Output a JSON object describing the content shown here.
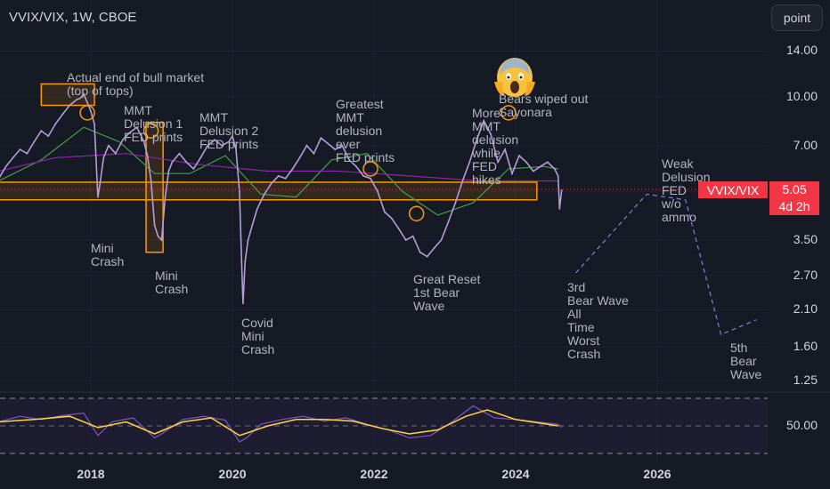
{
  "header": {
    "title": "VVIX/VIX, 1W, CBOE",
    "point_button": "point"
  },
  "price_tag": {
    "symbol": "VVIX/VIX",
    "value": "5.05",
    "countdown": "4d 2h"
  },
  "colors": {
    "background": "#161a25",
    "price_line": "#b39ddb",
    "ma_green": "#43a047",
    "ma_purple": "#8e24aa",
    "annotation_orange": "#ff9800",
    "down_red": "#f23645",
    "rsi_line": "#7e57c2",
    "rsi_ma": "#fdd835",
    "projection": "#7e74d4"
  },
  "annotations": [
    {
      "id": "actual-end",
      "text": "Actual end of bull market\n(top of tops)"
    },
    {
      "id": "mmt-delusion-1",
      "text": "MMT\nDelusion 1\nFED prints"
    },
    {
      "id": "mmt-delusion-2",
      "text": "MMT\nDelusion 2\nFED prints"
    },
    {
      "id": "greatest-mmt",
      "text": "Greatest\nMMT\ndelusion\never\nFED prints"
    },
    {
      "id": "more-mmt",
      "text": "More\nMMT\ndelusion\nwhile\nFED\nhikes"
    },
    {
      "id": "bears-wiped",
      "text": "Bears wiped out\nSayonara"
    },
    {
      "id": "mini-crash-1",
      "text": "Mini\nCrash"
    },
    {
      "id": "mini-crash-2",
      "text": "Mini\nCrash"
    },
    {
      "id": "covid",
      "text": "Covid\nMini\nCrash"
    },
    {
      "id": "great-reset",
      "text": "Great Reset\n1st Bear\nWave"
    },
    {
      "id": "third-bear",
      "text": "3rd\nBear Wave\nAll\nTime\nWorst\nCrash"
    },
    {
      "id": "weak-delusion",
      "text": "Weak\nDelusion\nFED\nw/o\nammo"
    },
    {
      "id": "fifth-bear",
      "text": "5th\nBear\nWave"
    }
  ],
  "chart_data": [
    {
      "type": "line",
      "title": "VVIX/VIX, 1W, CBOE",
      "y_scale": "log",
      "ylim": [
        1.15,
        16.0
      ],
      "y_ticks": [
        "14.00",
        "10.00",
        "7.00",
        "5.00",
        "3.50",
        "2.70",
        "2.10",
        "1.60",
        "1.25"
      ],
      "x_ticks": [
        "2018",
        "2020",
        "2022",
        "2024",
        "2026"
      ],
      "xlim": [
        2016.7,
        2027.4
      ],
      "last_value": 5.05,
      "series": [
        {
          "x": [
            2016.7,
            2016.8,
            2016.9,
            2017.0,
            2017.1,
            2017.2,
            2017.3,
            2017.4,
            2017.5,
            2017.6,
            2017.7,
            2017.8,
            2017.85,
            2017.9,
            2017.95,
            2018.0,
            2018.05,
            2018.1,
            2018.13,
            2018.18,
            2018.25,
            2018.35,
            2018.45,
            2018.55,
            2018.65,
            2018.75,
            2018.8,
            2018.85,
            2018.9,
            2018.95,
            2019.0,
            2019.05,
            2019.1,
            2019.15,
            2019.25,
            2019.35,
            2019.45,
            2019.55,
            2019.65,
            2019.75,
            2019.85,
            2019.95,
            2020.0,
            2020.05,
            2020.1,
            2020.13,
            2020.15,
            2020.18,
            2020.22,
            2020.28,
            2020.35,
            2020.45,
            2020.55,
            2020.65,
            2020.75,
            2020.85,
            2020.95,
            2021.05,
            2021.15,
            2021.25,
            2021.35,
            2021.45,
            2021.55,
            2021.65,
            2021.75,
            2021.85,
            2021.95,
            2022.05,
            2022.15,
            2022.25,
            2022.35,
            2022.45,
            2022.55,
            2022.65,
            2022.75,
            2022.85,
            2022.95,
            2023.05,
            2023.15,
            2023.25,
            2023.35,
            2023.45,
            2023.55,
            2023.65,
            2023.75,
            2023.85,
            2023.95,
            2024.05,
            2024.15,
            2024.25,
            2024.35,
            2024.45,
            2024.55,
            2024.6,
            2024.62,
            2024.65
          ],
          "values": [
            5.5,
            6.0,
            6.4,
            6.8,
            6.6,
            7.2,
            7.8,
            7.5,
            8.2,
            8.8,
            9.4,
            9.8,
            9.9,
            10.2,
            9.6,
            9.0,
            8.2,
            4.8,
            5.3,
            6.4,
            7.0,
            6.6,
            7.3,
            7.7,
            8.0,
            7.2,
            6.5,
            5.4,
            3.9,
            3.6,
            3.5,
            4.8,
            5.8,
            6.2,
            6.6,
            6.2,
            5.9,
            6.4,
            7.0,
            7.3,
            7.0,
            7.2,
            7.5,
            6.8,
            5.0,
            3.0,
            2.2,
            3.0,
            3.5,
            3.9,
            4.4,
            4.9,
            5.3,
            5.6,
            5.5,
            5.9,
            6.4,
            7.0,
            6.6,
            7.4,
            7.1,
            6.8,
            7.0,
            6.3,
            6.0,
            5.6,
            5.5,
            5.0,
            4.3,
            4.1,
            3.8,
            3.5,
            3.6,
            3.2,
            3.1,
            3.3,
            3.5,
            4.0,
            4.6,
            5.4,
            6.2,
            7.3,
            8.4,
            7.6,
            6.2,
            6.8,
            5.7,
            6.5,
            6.2,
            5.8,
            6.0,
            6.2,
            5.9,
            5.6,
            4.4,
            5.05
          ],
          "name": ""
        },
        {
          "x": [
            2016.7,
            2017.3,
            2017.9,
            2018.4,
            2018.9,
            2019.4,
            2019.9,
            2020.4,
            2020.9,
            2021.4,
            2021.9,
            2022.4,
            2022.9,
            2023.4,
            2023.9,
            2024.4,
            2024.6
          ],
          "values": [
            5.4,
            6.3,
            8.0,
            7.2,
            5.7,
            5.7,
            6.5,
            4.9,
            4.8,
            6.3,
            6.6,
            5.0,
            4.2,
            4.6,
            5.9,
            6.0,
            5.9
          ],
          "name": ""
        },
        {
          "x": [
            2016.7,
            2017.5,
            2018.5,
            2019.5,
            2020.5,
            2021.5,
            2022.5,
            2023.5,
            2024.6
          ],
          "values": [
            5.8,
            6.4,
            6.6,
            6.1,
            5.8,
            5.8,
            5.6,
            5.4,
            5.4
          ],
          "name": ""
        }
      ],
      "projection": {
        "x": [
          2024.85,
          2025.85,
          2026.4,
          2026.9,
          2027.4
        ],
        "values": [
          2.75,
          4.9,
          4.7,
          1.75,
          1.95
        ]
      },
      "zones": [
        {
          "x": [
            2017.3,
            2018.05
          ],
          "y": [
            9.4,
            11.0
          ]
        },
        {
          "x": [
            2018.78,
            2019.02
          ],
          "y": [
            3.2,
            8.3
          ]
        },
        {
          "x": [
            2016.7,
            2024.3
          ],
          "y": [
            4.7,
            5.35
          ]
        }
      ],
      "circles": [
        {
          "x": 2017.95,
          "y": 8.9
        },
        {
          "x": 2018.85,
          "y": 7.8
        },
        {
          "x": 2021.95,
          "y": 5.9
        },
        {
          "x": 2022.6,
          "y": 4.25
        },
        {
          "x": 2023.9,
          "y": 8.9
        }
      ]
    },
    {
      "type": "line",
      "ylabel": "",
      "y_ticks": [
        "50.00"
      ],
      "ylim": [
        20,
        85
      ],
      "series": [
        {
          "x": [
            2016.7,
            2017.0,
            2017.3,
            2017.6,
            2017.9,
            2018.1,
            2018.3,
            2018.6,
            2018.9,
            2019.0,
            2019.3,
            2019.6,
            2019.9,
            2020.1,
            2020.2,
            2020.4,
            2020.7,
            2021.0,
            2021.3,
            2021.6,
            2021.9,
            2022.2,
            2022.5,
            2022.8,
            2023.1,
            2023.4,
            2023.7,
            2024.0,
            2024.3,
            2024.6,
            2024.65
          ],
          "values": [
            55,
            62,
            58,
            63,
            66,
            38,
            55,
            60,
            35,
            40,
            58,
            62,
            57,
            30,
            35,
            52,
            58,
            62,
            56,
            60,
            52,
            45,
            35,
            38,
            55,
            75,
            60,
            58,
            55,
            52,
            48
          ],
          "name": ""
        },
        {
          "x": [
            2016.7,
            2017.2,
            2017.7,
            2018.1,
            2018.5,
            2018.9,
            2019.3,
            2019.7,
            2020.1,
            2020.5,
            2020.9,
            2021.3,
            2021.7,
            2022.1,
            2022.5,
            2022.9,
            2023.3,
            2023.6,
            2024.0,
            2024.3,
            2024.6
          ],
          "values": [
            55,
            58,
            62,
            48,
            55,
            40,
            55,
            60,
            38,
            50,
            58,
            58,
            56,
            47,
            40,
            45,
            62,
            70,
            58,
            54,
            50
          ],
          "name": ""
        }
      ]
    }
  ]
}
